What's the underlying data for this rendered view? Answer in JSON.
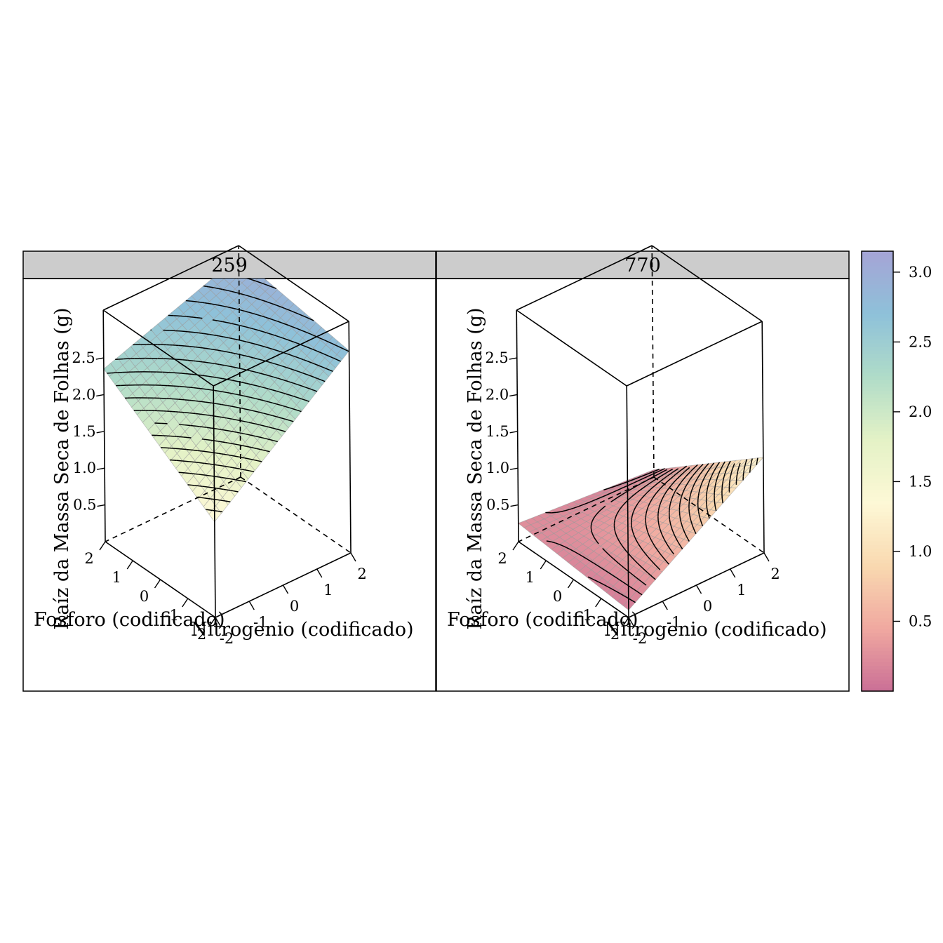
{
  "chart_data": {
    "type": "surface-3d",
    "panels": [
      {
        "strip_label": "259",
        "surface": {
          "x": [
            -2,
            2
          ],
          "y": [
            -2,
            2
          ],
          "z_at_corners": {
            "x-2_y-2": 1.3,
            "x2_y-2": 2.75,
            "x-2_y2": 2.35,
            "x2_y2": 3.0
          }
        }
      },
      {
        "strip_label": "770",
        "surface": {
          "x": [
            -2,
            2
          ],
          "y": [
            -2,
            2
          ],
          "z_at_corners": {
            "x-2_y-2": 0.1,
            "x2_y-2": 1.3,
            "x-2_y2": 0.25,
            "x2_y2": 0.1
          }
        }
      }
    ],
    "x_axis": {
      "label": "Nitrogenio (codificado)",
      "ticks": [
        "-2",
        "-1",
        "0",
        "1",
        "2"
      ],
      "range": [
        -2,
        2
      ]
    },
    "y_axis": {
      "label": "Fosforo (codificado)",
      "ticks": [
        "-2",
        "-1",
        "0",
        "1",
        "2"
      ],
      "range": [
        -2,
        2
      ]
    },
    "z_axis": {
      "label": "Raíz da Massa Seca de Folhas (g)",
      "ticks": [
        "0.5",
        "1.0",
        "1.5",
        "2.0",
        "2.5"
      ],
      "range": [
        0,
        3.15
      ]
    },
    "colorkey": {
      "range": [
        0,
        3.15
      ],
      "ticks": [
        "0.5",
        "1.0",
        "1.5",
        "2.0",
        "2.5",
        "3.0"
      ],
      "palette": [
        "#ca6f96",
        "#f0a8a0",
        "#f9d9b0",
        "#fdf8d6",
        "#e4f2c6",
        "#b0dcc8",
        "#8ec1d9",
        "#a5a4d6"
      ]
    }
  }
}
